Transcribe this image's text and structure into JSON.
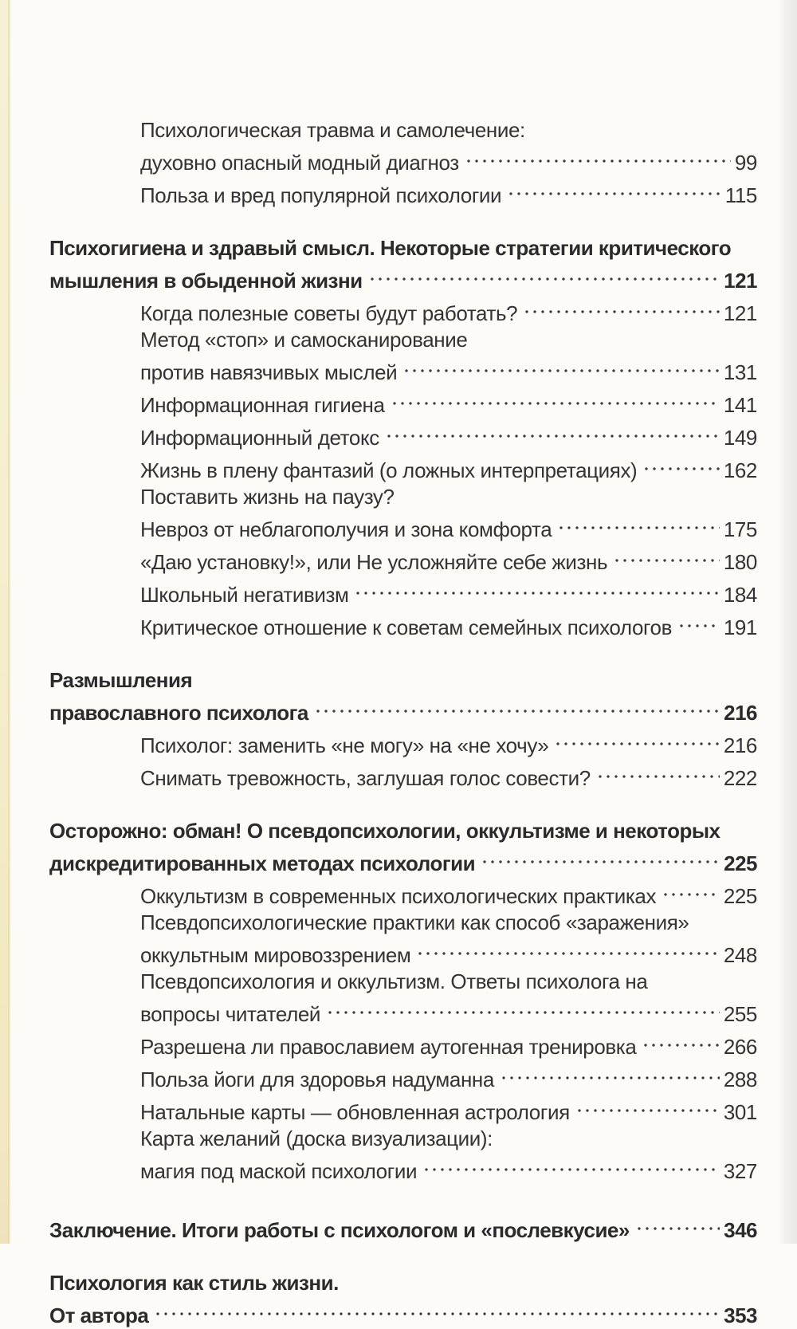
{
  "page": {
    "background": "#fcfbf8",
    "paper_edge_left_color": "#f5efcd",
    "paper_edge_right_color": "#dedcd6",
    "text_color": "#333333",
    "heading_color": "#2b2b2b",
    "dot_leader_color": "#3b3b3b"
  },
  "toc": {
    "sections": [
      {
        "header_lines": [],
        "items": [
          {
            "lines": [
              {
                "text": "Психологическая травма и самолечение:"
              },
              {
                "text": "духовно опасный модный диагноз",
                "page": "99"
              }
            ]
          },
          {
            "lines": [
              {
                "text": "Польза и вред популярной психологии",
                "page": "115"
              }
            ]
          }
        ]
      },
      {
        "header_lines": [
          {
            "text": "Психогигиена и здравый смысл. Некоторые стратегии критического"
          },
          {
            "text": "мышления в обыденной жизни",
            "page": "121"
          }
        ],
        "items": [
          {
            "lines": [
              {
                "text": "Когда полезные советы будут работать?",
                "page": "121"
              }
            ]
          },
          {
            "lines": [
              {
                "text": "Метод «стоп» и самосканирование"
              },
              {
                "text": "против навязчивых мыслей",
                "page": "131"
              }
            ]
          },
          {
            "lines": [
              {
                "text": "Информационная гигиена",
                "page": "141"
              }
            ]
          },
          {
            "lines": [
              {
                "text": "Информационный детокс",
                "page": "149"
              }
            ]
          },
          {
            "lines": [
              {
                "text": "Жизнь в плену фантазий (о ложных интерпретациях)",
                "page": "162"
              }
            ]
          },
          {
            "lines": [
              {
                "text": "Поставить жизнь на паузу?"
              },
              {
                "text": "Невроз от неблагополучия и зона комфорта",
                "page": "175"
              }
            ]
          },
          {
            "lines": [
              {
                "text": "«Даю установку!», или Не усложняйте себе жизнь",
                "page": "180"
              }
            ]
          },
          {
            "lines": [
              {
                "text": "Школьный негативизм",
                "page": "184"
              }
            ]
          },
          {
            "lines": [
              {
                "text": "Критическое отношение к советам семейных психологов",
                "page": "191"
              }
            ]
          }
        ]
      },
      {
        "header_lines": [
          {
            "text": "Размышления"
          },
          {
            "text": "православного психолога",
            "page": "216"
          }
        ],
        "items": [
          {
            "lines": [
              {
                "text": "Психолог: заменить «не могу» на «не хочу»",
                "page": "216"
              }
            ]
          },
          {
            "lines": [
              {
                "text": "Снимать тревожность, заглушая голос совести?",
                "page": "222"
              }
            ]
          }
        ]
      },
      {
        "header_lines": [
          {
            "text": "Осторожно: обман! О псевдопсихологии, оккультизме и некоторых"
          },
          {
            "text": "дискредитированных методах психологии",
            "page": "225"
          }
        ],
        "items": [
          {
            "lines": [
              {
                "text": "Оккультизм в современных психологических практиках",
                "page": "225"
              }
            ]
          },
          {
            "lines": [
              {
                "text": "Псевдопсихологические практики как способ «заражения»"
              },
              {
                "text": "оккультным мировоззрением",
                "page": "248"
              }
            ]
          },
          {
            "lines": [
              {
                "text": "Псевдопсихология и оккультизм. Ответы психолога на"
              },
              {
                "text": "вопросы читателей",
                "page": "255"
              }
            ]
          },
          {
            "lines": [
              {
                "text": "Разрешена ли православием аутогенная тренировка",
                "page": "266"
              }
            ]
          },
          {
            "lines": [
              {
                "text": "Польза йоги для здоровья надуманна",
                "page": "288"
              }
            ]
          },
          {
            "lines": [
              {
                "text": "Натальные карты — обновленная астрология",
                "page": "301"
              }
            ]
          },
          {
            "lines": [
              {
                "text": "Карта желаний (доска визуализации):"
              },
              {
                "text": "магия под маской психологии",
                "page": "327"
              }
            ]
          }
        ]
      },
      {
        "header_lines": [
          {
            "text": "Заключение. Итоги работы с психологом и «послевкусие»",
            "page": "346"
          }
        ],
        "items": []
      },
      {
        "header_lines": [
          {
            "text": "Психология как стиль жизни."
          },
          {
            "text": "От автора",
            "page": "353"
          }
        ],
        "items": []
      }
    ]
  }
}
